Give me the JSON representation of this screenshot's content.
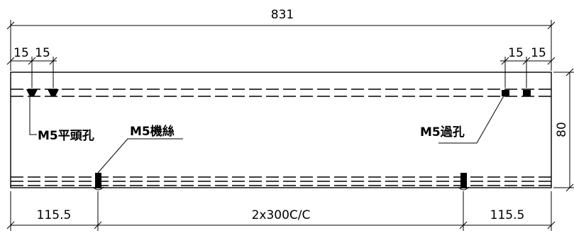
{
  "dimensions": {
    "overall_length": "831",
    "left_offset_1": "15",
    "left_offset_2": "15",
    "right_offset_1": "15",
    "right_offset_2": "15",
    "height": "80",
    "end_left": "115.5",
    "end_right": "115.5",
    "center_spacing": "2x300C/C"
  },
  "notes": {
    "countersunk_hole": "M5平頭孔",
    "machine_screw": "M5機絲",
    "through_hole": "M5過孔"
  }
}
